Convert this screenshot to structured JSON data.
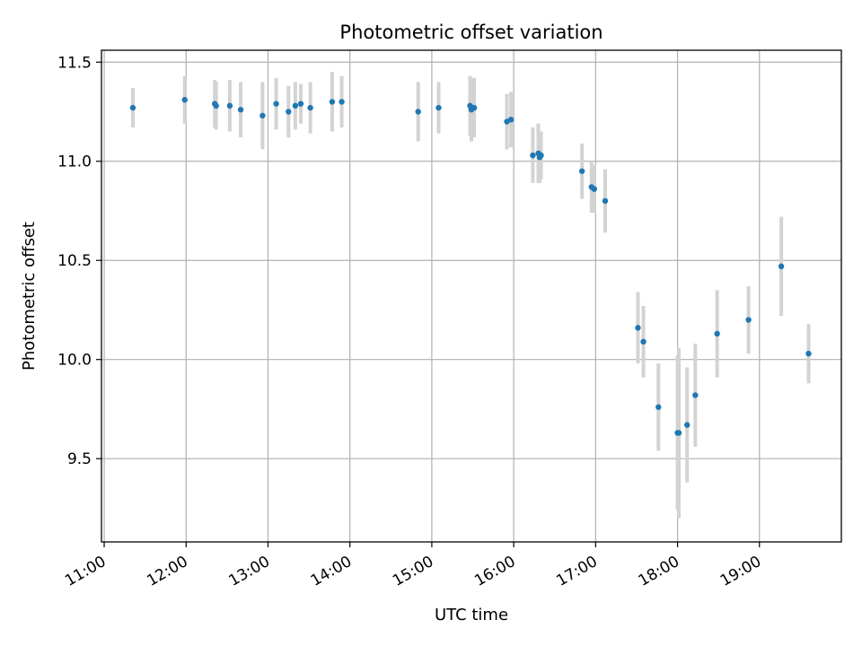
{
  "chart_data": {
    "type": "scatter",
    "title": "Photometric offset variation",
    "xlabel": "UTC time",
    "ylabel": "Photometric offset",
    "x_ticks": [
      "11:00",
      "12:00",
      "13:00",
      "14:00",
      "15:00",
      "16:00",
      "17:00",
      "18:00",
      "19:00"
    ],
    "y_ticks": [
      "9.5",
      "10.0",
      "10.5",
      "11.0",
      "11.5"
    ],
    "xlim": [
      "10:58",
      "20:00"
    ],
    "ylim": [
      9.08,
      11.56
    ],
    "grid": true,
    "colors": {
      "points": "#1f77b4",
      "errorbars": "#d3d3d3",
      "grid": "#b0b0b0"
    },
    "points": [
      {
        "t": "11:21",
        "y": 11.27,
        "err": 0.1
      },
      {
        "t": "11:59",
        "y": 11.31,
        "err": 0.12
      },
      {
        "t": "12:21",
        "y": 11.29,
        "err": 0.12
      },
      {
        "t": "12:22",
        "y": 11.28,
        "err": 0.12
      },
      {
        "t": "12:32",
        "y": 11.28,
        "err": 0.13
      },
      {
        "t": "12:40",
        "y": 11.26,
        "err": 0.14
      },
      {
        "t": "12:56",
        "y": 11.23,
        "err": 0.17
      },
      {
        "t": "13:06",
        "y": 11.29,
        "err": 0.13
      },
      {
        "t": "13:15",
        "y": 11.25,
        "err": 0.13
      },
      {
        "t": "13:20",
        "y": 11.28,
        "err": 0.12
      },
      {
        "t": "13:24",
        "y": 11.29,
        "err": 0.1
      },
      {
        "t": "13:31",
        "y": 11.27,
        "err": 0.13
      },
      {
        "t": "13:47",
        "y": 11.3,
        "err": 0.15
      },
      {
        "t": "13:54",
        "y": 11.3,
        "err": 0.13
      },
      {
        "t": "14:50",
        "y": 11.25,
        "err": 0.15
      },
      {
        "t": "15:05",
        "y": 11.27,
        "err": 0.13
      },
      {
        "t": "15:28",
        "y": 11.28,
        "err": 0.15
      },
      {
        "t": "15:29",
        "y": 11.26,
        "err": 0.16
      },
      {
        "t": "15:31",
        "y": 11.27,
        "err": 0.15
      },
      {
        "t": "15:55",
        "y": 11.2,
        "err": 0.14
      },
      {
        "t": "15:58",
        "y": 11.21,
        "err": 0.14
      },
      {
        "t": "16:14",
        "y": 11.03,
        "err": 0.14
      },
      {
        "t": "16:18",
        "y": 11.04,
        "err": 0.15
      },
      {
        "t": "16:19",
        "y": 11.02,
        "err": 0.13
      },
      {
        "t": "16:20",
        "y": 11.03,
        "err": 0.12
      },
      {
        "t": "16:50",
        "y": 10.95,
        "err": 0.14
      },
      {
        "t": "16:57",
        "y": 10.87,
        "err": 0.13
      },
      {
        "t": "16:59",
        "y": 10.86,
        "err": 0.12
      },
      {
        "t": "17:07",
        "y": 10.8,
        "err": 0.16
      },
      {
        "t": "17:31",
        "y": 10.16,
        "err": 0.18
      },
      {
        "t": "17:35",
        "y": 10.09,
        "err": 0.18
      },
      {
        "t": "17:46",
        "y": 9.76,
        "err": 0.22
      },
      {
        "t": "18:00",
        "y": 9.63,
        "err": 0.39
      },
      {
        "t": "18:01",
        "y": 9.63,
        "err": 0.43
      },
      {
        "t": "18:07",
        "y": 9.67,
        "err": 0.29
      },
      {
        "t": "18:13",
        "y": 9.82,
        "err": 0.26
      },
      {
        "t": "18:29",
        "y": 10.13,
        "err": 0.22
      },
      {
        "t": "18:52",
        "y": 10.2,
        "err": 0.17
      },
      {
        "t": "19:16",
        "y": 10.47,
        "err": 0.25
      },
      {
        "t": "19:36",
        "y": 10.03,
        "err": 0.15
      }
    ]
  }
}
